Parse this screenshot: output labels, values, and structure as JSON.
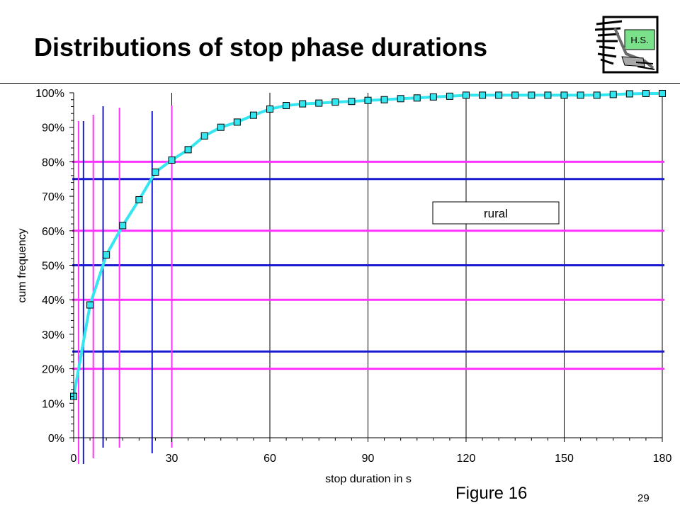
{
  "slide": {
    "title": "Distributions of stop phase durations",
    "figure_caption": "Figure 16",
    "page_number": "29",
    "logo_text": "H.S."
  },
  "chart_data": {
    "type": "line",
    "title": "",
    "xlabel": "stop duration in s",
    "ylabel": "cum frequency",
    "xlim": [
      0,
      180
    ],
    "ylim": [
      0,
      100
    ],
    "x_ticks": [
      0,
      30,
      60,
      90,
      120,
      150,
      180
    ],
    "y_ticks": [
      "0%",
      "10%",
      "20%",
      "30%",
      "40%",
      "50%",
      "60%",
      "70%",
      "80%",
      "90%",
      "100%"
    ],
    "grid": "vertical",
    "legend_label": "rural",
    "series": [
      {
        "color": "#33e6f0",
        "marker": "square",
        "x": [
          0,
          5,
          10,
          15,
          20,
          25,
          30,
          35,
          40,
          45,
          50,
          55,
          60,
          65,
          70,
          75,
          80,
          85,
          90,
          95,
          100,
          105,
          110,
          115,
          120,
          125,
          130,
          135,
          140,
          145,
          150,
          155,
          160,
          165,
          170,
          175,
          180
        ],
        "y": [
          12,
          38.5,
          53,
          61.5,
          69,
          77,
          80.5,
          83.5,
          87.5,
          90,
          91.5,
          93.5,
          95.3,
          96.3,
          96.8,
          97,
          97.3,
          97.5,
          97.8,
          98,
          98.3,
          98.5,
          98.8,
          99,
          99.3,
          99.3,
          99.3,
          99.3,
          99.3,
          99.3,
          99.3,
          99.3,
          99.3,
          99.5,
          99.7,
          99.8,
          99.8
        ]
      }
    ],
    "reference_lines": {
      "horizontal": [
        {
          "y": 20,
          "color": "#ff33ff"
        },
        {
          "y": 25,
          "color": "#1a1ad0"
        },
        {
          "y": 40,
          "color": "#ff33ff"
        },
        {
          "y": 50,
          "color": "#1a1ad0"
        },
        {
          "y": 60,
          "color": "#ff33ff"
        },
        {
          "y": 75,
          "color": "#1a1ad0"
        },
        {
          "y": 80,
          "color": "#ff33ff"
        }
      ],
      "vertical": [
        {
          "x": 1.5,
          "color": "#ff33ff"
        },
        {
          "x": 3,
          "color": "#1a1ad0"
        },
        {
          "x": 6,
          "color": "#ff33ff"
        },
        {
          "x": 9,
          "color": "#1a1ad0"
        },
        {
          "x": 14,
          "color": "#ff33ff"
        },
        {
          "x": 24,
          "color": "#1a1ad0"
        },
        {
          "x": 30,
          "color": "#ff33ff"
        }
      ]
    }
  }
}
